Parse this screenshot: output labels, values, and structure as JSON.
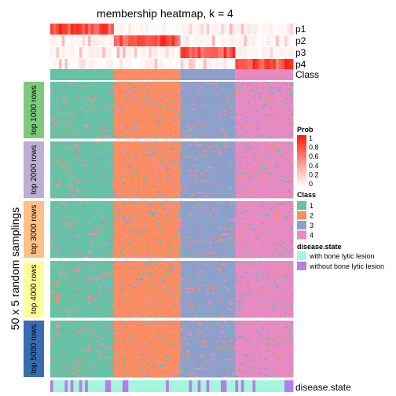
{
  "chart_data": {
    "type": "heatmap",
    "title": "membership heatmap, k = 4",
    "y_group_title": "50 x 5 random samplings",
    "prob_tracks": [
      "p1",
      "p2",
      "p3",
      "p4"
    ],
    "class_track_label": "Class",
    "bottom_track_label": "disease.state",
    "column_class_segments": [
      {
        "class": "1",
        "columns": 22
      },
      {
        "class": "2",
        "columns": 23
      },
      {
        "class": "3",
        "columns": 19
      },
      {
        "class": "4",
        "columns": 20
      }
    ],
    "row_groups": [
      "top 1000 rows",
      "top 2000 rows",
      "top 3000 rows",
      "top 4000 rows",
      "top 5000 rows"
    ],
    "row_group_colors": [
      "#7FC97F",
      "#BEAED4",
      "#FDC086",
      "#FFFF99",
      "#386CB0"
    ],
    "legends": {
      "prob": {
        "title": "Prob",
        "ticks": [
          "1",
          "0.8",
          "0.6",
          "0.4",
          "0.2",
          "0"
        ],
        "range": [
          0,
          1
        ]
      },
      "class": {
        "title": "Class",
        "entries": [
          {
            "label": "1",
            "color": "#66C2A5"
          },
          {
            "label": "2",
            "color": "#FC8D62"
          },
          {
            "label": "3",
            "color": "#8DA0CB"
          },
          {
            "label": "4",
            "color": "#E78AC3"
          }
        ]
      },
      "disease_state": {
        "title": "disease.state",
        "entries": [
          {
            "label": "with bone lytic lesion",
            "color": "#A6F5DE"
          },
          {
            "label": "without bone lytic lesion",
            "color": "#B47FE8"
          }
        ]
      }
    }
  }
}
